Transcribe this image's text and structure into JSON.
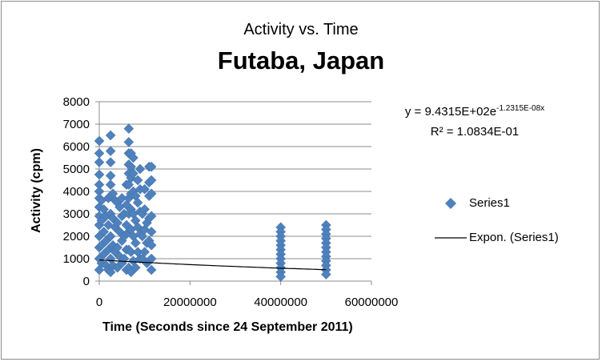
{
  "chart_data": {
    "type": "scatter",
    "title": "Activity vs. Time",
    "subtitle": "Futaba, Japan",
    "xlabel": "Time (Seconds since 24 September 2011)",
    "ylabel": "Activity (cpm)",
    "xlim": [
      0,
      60000000
    ],
    "ylim": [
      0,
      8000
    ],
    "xticks": [
      "0",
      "20000000",
      "40000000",
      "60000000"
    ],
    "yticks": [
      "0",
      "1000",
      "2000",
      "3000",
      "4000",
      "5000",
      "6000",
      "7000",
      "8000"
    ],
    "grid": "horizontal",
    "legend_position": "right",
    "series": [
      {
        "name": "Series1",
        "marker": "diamond",
        "color": "#4f81bd",
        "points": [
          [
            0,
            6250
          ],
          [
            0,
            5700
          ],
          [
            0,
            5300
          ],
          [
            0,
            4750
          ],
          [
            0,
            4300
          ],
          [
            0,
            4000
          ],
          [
            0,
            3700
          ],
          [
            0,
            3300
          ],
          [
            0,
            2900
          ],
          [
            0,
            2500
          ],
          [
            0,
            2000
          ],
          [
            0,
            1500
          ],
          [
            0,
            1000
          ],
          [
            0,
            500
          ],
          [
            500000,
            3600
          ],
          [
            500000,
            2700
          ],
          [
            500000,
            1600
          ],
          [
            500000,
            800
          ],
          [
            1000000,
            3200
          ],
          [
            1000000,
            2200
          ],
          [
            1000000,
            1200
          ],
          [
            1500000,
            2900
          ],
          [
            1500000,
            1800
          ],
          [
            1500000,
            700
          ],
          [
            2000000,
            3700
          ],
          [
            2000000,
            2500
          ],
          [
            2000000,
            1400
          ],
          [
            2000000,
            500
          ],
          [
            2500000,
            6500
          ],
          [
            2500000,
            5800
          ],
          [
            2500000,
            5300
          ],
          [
            2500000,
            4700
          ],
          [
            2500000,
            4300
          ],
          [
            2500000,
            3800
          ],
          [
            2500000,
            3000
          ],
          [
            2500000,
            2000
          ],
          [
            2500000,
            1000
          ],
          [
            2500000,
            400
          ],
          [
            3000000,
            3900
          ],
          [
            3000000,
            2800
          ],
          [
            3000000,
            1600
          ],
          [
            3000000,
            700
          ],
          [
            3500000,
            3600
          ],
          [
            3500000,
            2400
          ],
          [
            3500000,
            1300
          ],
          [
            4000000,
            3500
          ],
          [
            4000000,
            2600
          ],
          [
            4000000,
            1500
          ],
          [
            4000000,
            600
          ],
          [
            4500000,
            3300
          ],
          [
            4500000,
            2200
          ],
          [
            4500000,
            1100
          ],
          [
            5000000,
            3700
          ],
          [
            5000000,
            2900
          ],
          [
            5000000,
            1800
          ],
          [
            5000000,
            800
          ],
          [
            5500000,
            3000
          ],
          [
            5500000,
            2000
          ],
          [
            5500000,
            1000
          ],
          [
            6000000,
            4300
          ],
          [
            6000000,
            3400
          ],
          [
            6000000,
            2500
          ],
          [
            6000000,
            1400
          ],
          [
            6000000,
            500
          ],
          [
            6500000,
            6800
          ],
          [
            6500000,
            6200
          ],
          [
            6500000,
            5700
          ],
          [
            6500000,
            5200
          ],
          [
            6500000,
            4800
          ],
          [
            6500000,
            4300
          ],
          [
            6500000,
            3700
          ],
          [
            6500000,
            3000
          ],
          [
            6500000,
            2200
          ],
          [
            6500000,
            1400
          ],
          [
            6500000,
            600
          ],
          [
            7000000,
            5700
          ],
          [
            7000000,
            5100
          ],
          [
            7000000,
            4600
          ],
          [
            7000000,
            3900
          ],
          [
            7000000,
            3200
          ],
          [
            7000000,
            2300
          ],
          [
            7000000,
            1300
          ],
          [
            7000000,
            400
          ],
          [
            7500000,
            5500
          ],
          [
            7500000,
            4800
          ],
          [
            7500000,
            4000
          ],
          [
            7500000,
            3000
          ],
          [
            7500000,
            2000
          ],
          [
            7500000,
            900
          ],
          [
            8000000,
            3800
          ],
          [
            8000000,
            2700
          ],
          [
            8000000,
            1700
          ],
          [
            8000000,
            600
          ],
          [
            8500000,
            4500
          ],
          [
            8500000,
            3500
          ],
          [
            8500000,
            2400
          ],
          [
            8500000,
            1300
          ],
          [
            9000000,
            5000
          ],
          [
            9000000,
            4100
          ],
          [
            9000000,
            3100
          ],
          [
            9000000,
            2100
          ],
          [
            9000000,
            1000
          ],
          [
            9500000,
            3000
          ],
          [
            9500000,
            2000
          ],
          [
            9500000,
            1000
          ],
          [
            10000000,
            4100
          ],
          [
            10000000,
            3200
          ],
          [
            10000000,
            2300
          ],
          [
            10000000,
            1300
          ],
          [
            10500000,
            2600
          ],
          [
            10500000,
            1700
          ],
          [
            10500000,
            800
          ],
          [
            11000000,
            5100
          ],
          [
            11000000,
            4400
          ],
          [
            11000000,
            3800
          ],
          [
            11000000,
            2800
          ],
          [
            11000000,
            1800
          ],
          [
            11000000,
            900
          ],
          [
            11500000,
            5100
          ],
          [
            11500000,
            4500
          ],
          [
            11500000,
            3900
          ],
          [
            11500000,
            2900
          ],
          [
            11500000,
            2200
          ],
          [
            11500000,
            1600
          ],
          [
            11500000,
            1000
          ],
          [
            11500000,
            500
          ],
          [
            40000000,
            2400
          ],
          [
            40000000,
            2200
          ],
          [
            40000000,
            2000
          ],
          [
            40000000,
            1800
          ],
          [
            40000000,
            1600
          ],
          [
            40000000,
            1400
          ],
          [
            40000000,
            1200
          ],
          [
            40000000,
            1000
          ],
          [
            40000000,
            800
          ],
          [
            40000000,
            600
          ],
          [
            40000000,
            400
          ],
          [
            40000000,
            200
          ],
          [
            50000000,
            2500
          ],
          [
            50000000,
            2300
          ],
          [
            50000000,
            2100
          ],
          [
            50000000,
            1900
          ],
          [
            50000000,
            1700
          ],
          [
            50000000,
            1500
          ],
          [
            50000000,
            1300
          ],
          [
            50000000,
            1100
          ],
          [
            50000000,
            900
          ],
          [
            50000000,
            700
          ],
          [
            50000000,
            500
          ],
          [
            50000000,
            300
          ]
        ]
      },
      {
        "name": "Expon. (Series1)",
        "type": "trendline",
        "color": "#000000",
        "model": "exponential",
        "a": 943.15,
        "b": -1.2315e-08,
        "x_range": [
          0,
          50000000
        ]
      }
    ],
    "annotations": {
      "equation_base": "y = 9.4315E+02e",
      "equation_exp": "-1.2315E-08x",
      "r_squared": "R² = 1.0834E-01"
    }
  }
}
